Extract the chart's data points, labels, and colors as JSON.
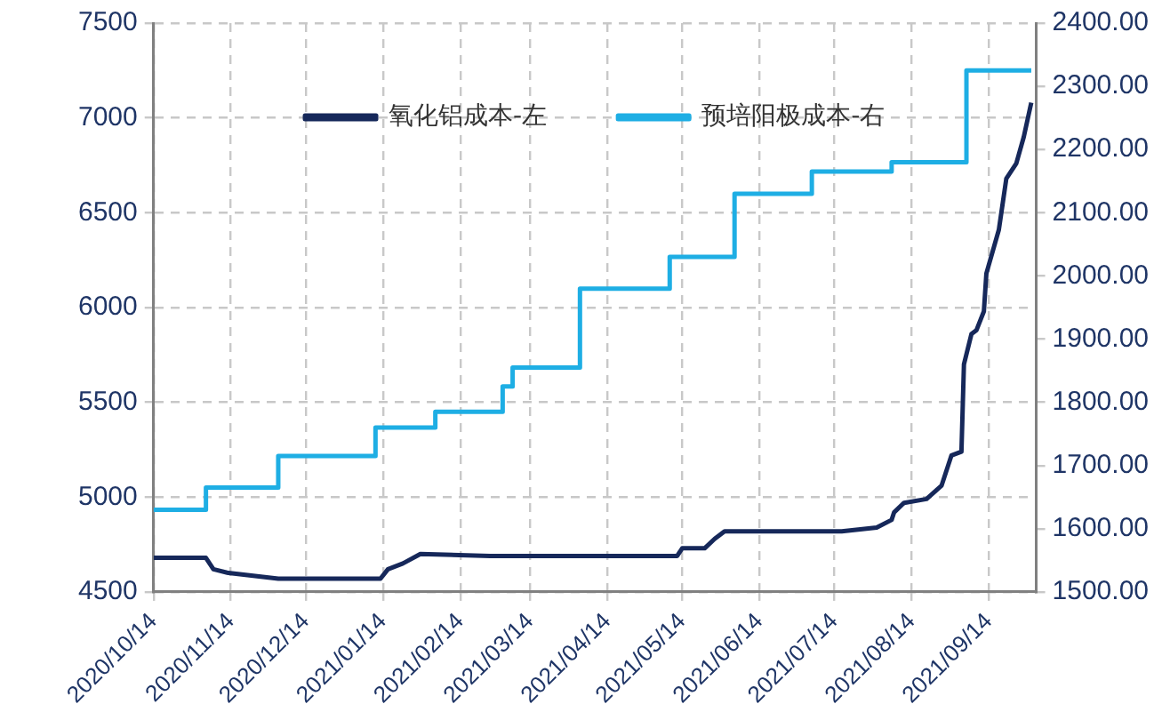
{
  "chart_data": {
    "type": "line",
    "legend": "top",
    "grid": true,
    "xlim": [
      "2020-10-14",
      "2021-10-03"
    ],
    "xticks": [
      {
        "value": "2020-10-14",
        "label": "2020/10/14"
      },
      {
        "value": "2020-11-14",
        "label": "2020/11/14"
      },
      {
        "value": "2020-12-14",
        "label": "2020/12/14"
      },
      {
        "value": "2021-01-14",
        "label": "2021/01/14"
      },
      {
        "value": "2021-02-14",
        "label": "2021/02/14"
      },
      {
        "value": "2021-03-14",
        "label": "2021/03/14"
      },
      {
        "value": "2021-04-14",
        "label": "2021/04/14"
      },
      {
        "value": "2021-05-14",
        "label": "2021/05/14"
      },
      {
        "value": "2021-06-14",
        "label": "2021/06/14"
      },
      {
        "value": "2021-07-14",
        "label": "2021/07/14"
      },
      {
        "value": "2021-08-14",
        "label": "2021/08/14"
      },
      {
        "value": "2021-09-14",
        "label": "2021/09/14"
      }
    ],
    "ylim": [
      4500,
      7500
    ],
    "yticks": [
      4500,
      5000,
      5500,
      6000,
      6500,
      7000,
      7500
    ],
    "y2lim": [
      1500,
      2400
    ],
    "y2ticks": [
      {
        "value": 1500,
        "label": "1500.00"
      },
      {
        "value": 1600,
        "label": "1600.00"
      },
      {
        "value": 1700,
        "label": "1700.00"
      },
      {
        "value": 1800,
        "label": "1800.00"
      },
      {
        "value": 1900,
        "label": "1900.00"
      },
      {
        "value": 2000,
        "label": "2000.00"
      },
      {
        "value": 2100,
        "label": "2100.00"
      },
      {
        "value": 2200,
        "label": "2200.00"
      },
      {
        "value": 2300,
        "label": "2300.00"
      },
      {
        "value": 2400,
        "label": "2400.00"
      }
    ],
    "series": [
      {
        "name": "氧化铝成本-左",
        "type": "line",
        "color": "#16285a",
        "x": [
          "2020-10-14",
          "2020-11-04",
          "2020-11-07",
          "2020-11-13",
          "2020-12-03",
          "2021-01-13",
          "2021-01-16",
          "2021-01-22",
          "2021-01-29",
          "2021-02-26",
          "2021-05-12",
          "2021-05-14",
          "2021-05-23",
          "2021-05-27",
          "2021-05-31",
          "2021-07-17",
          "2021-07-31",
          "2021-08-06",
          "2021-08-07",
          "2021-08-11",
          "2021-08-20",
          "2021-08-26",
          "2021-08-30",
          "2021-09-03",
          "2021-09-04",
          "2021-09-07",
          "2021-09-09",
          "2021-09-12",
          "2021-09-13",
          "2021-09-18",
          "2021-09-21",
          "2021-09-25",
          "2021-09-28",
          "2021-10-01"
        ],
        "values": [
          4680,
          4680,
          4620,
          4600,
          4570,
          4570,
          4620,
          4650,
          4700,
          4690,
          4690,
          4730,
          4730,
          4780,
          4820,
          4820,
          4840,
          4880,
          4920,
          4970,
          4990,
          5060,
          5220,
          5240,
          5700,
          5860,
          5880,
          5980,
          6180,
          6410,
          6680,
          6760,
          6900,
          7080
        ]
      },
      {
        "name": "预培阳极成本-右",
        "type": "step",
        "axis": "y2",
        "color": "#1eaee4",
        "x": [
          "2020-10-14",
          "2020-11-04",
          "2020-12-03",
          "2021-01-11",
          "2021-02-04",
          "2021-03-03",
          "2021-03-07",
          "2021-04-03",
          "2021-05-09",
          "2021-06-04",
          "2021-07-05",
          "2021-08-06",
          "2021-09-05",
          "2021-10-01"
        ],
        "values": [
          1630,
          1665,
          1715,
          1760,
          1785,
          1825,
          1855,
          1980,
          2030,
          2130,
          2165,
          2180,
          2325,
          2325
        ]
      }
    ]
  }
}
